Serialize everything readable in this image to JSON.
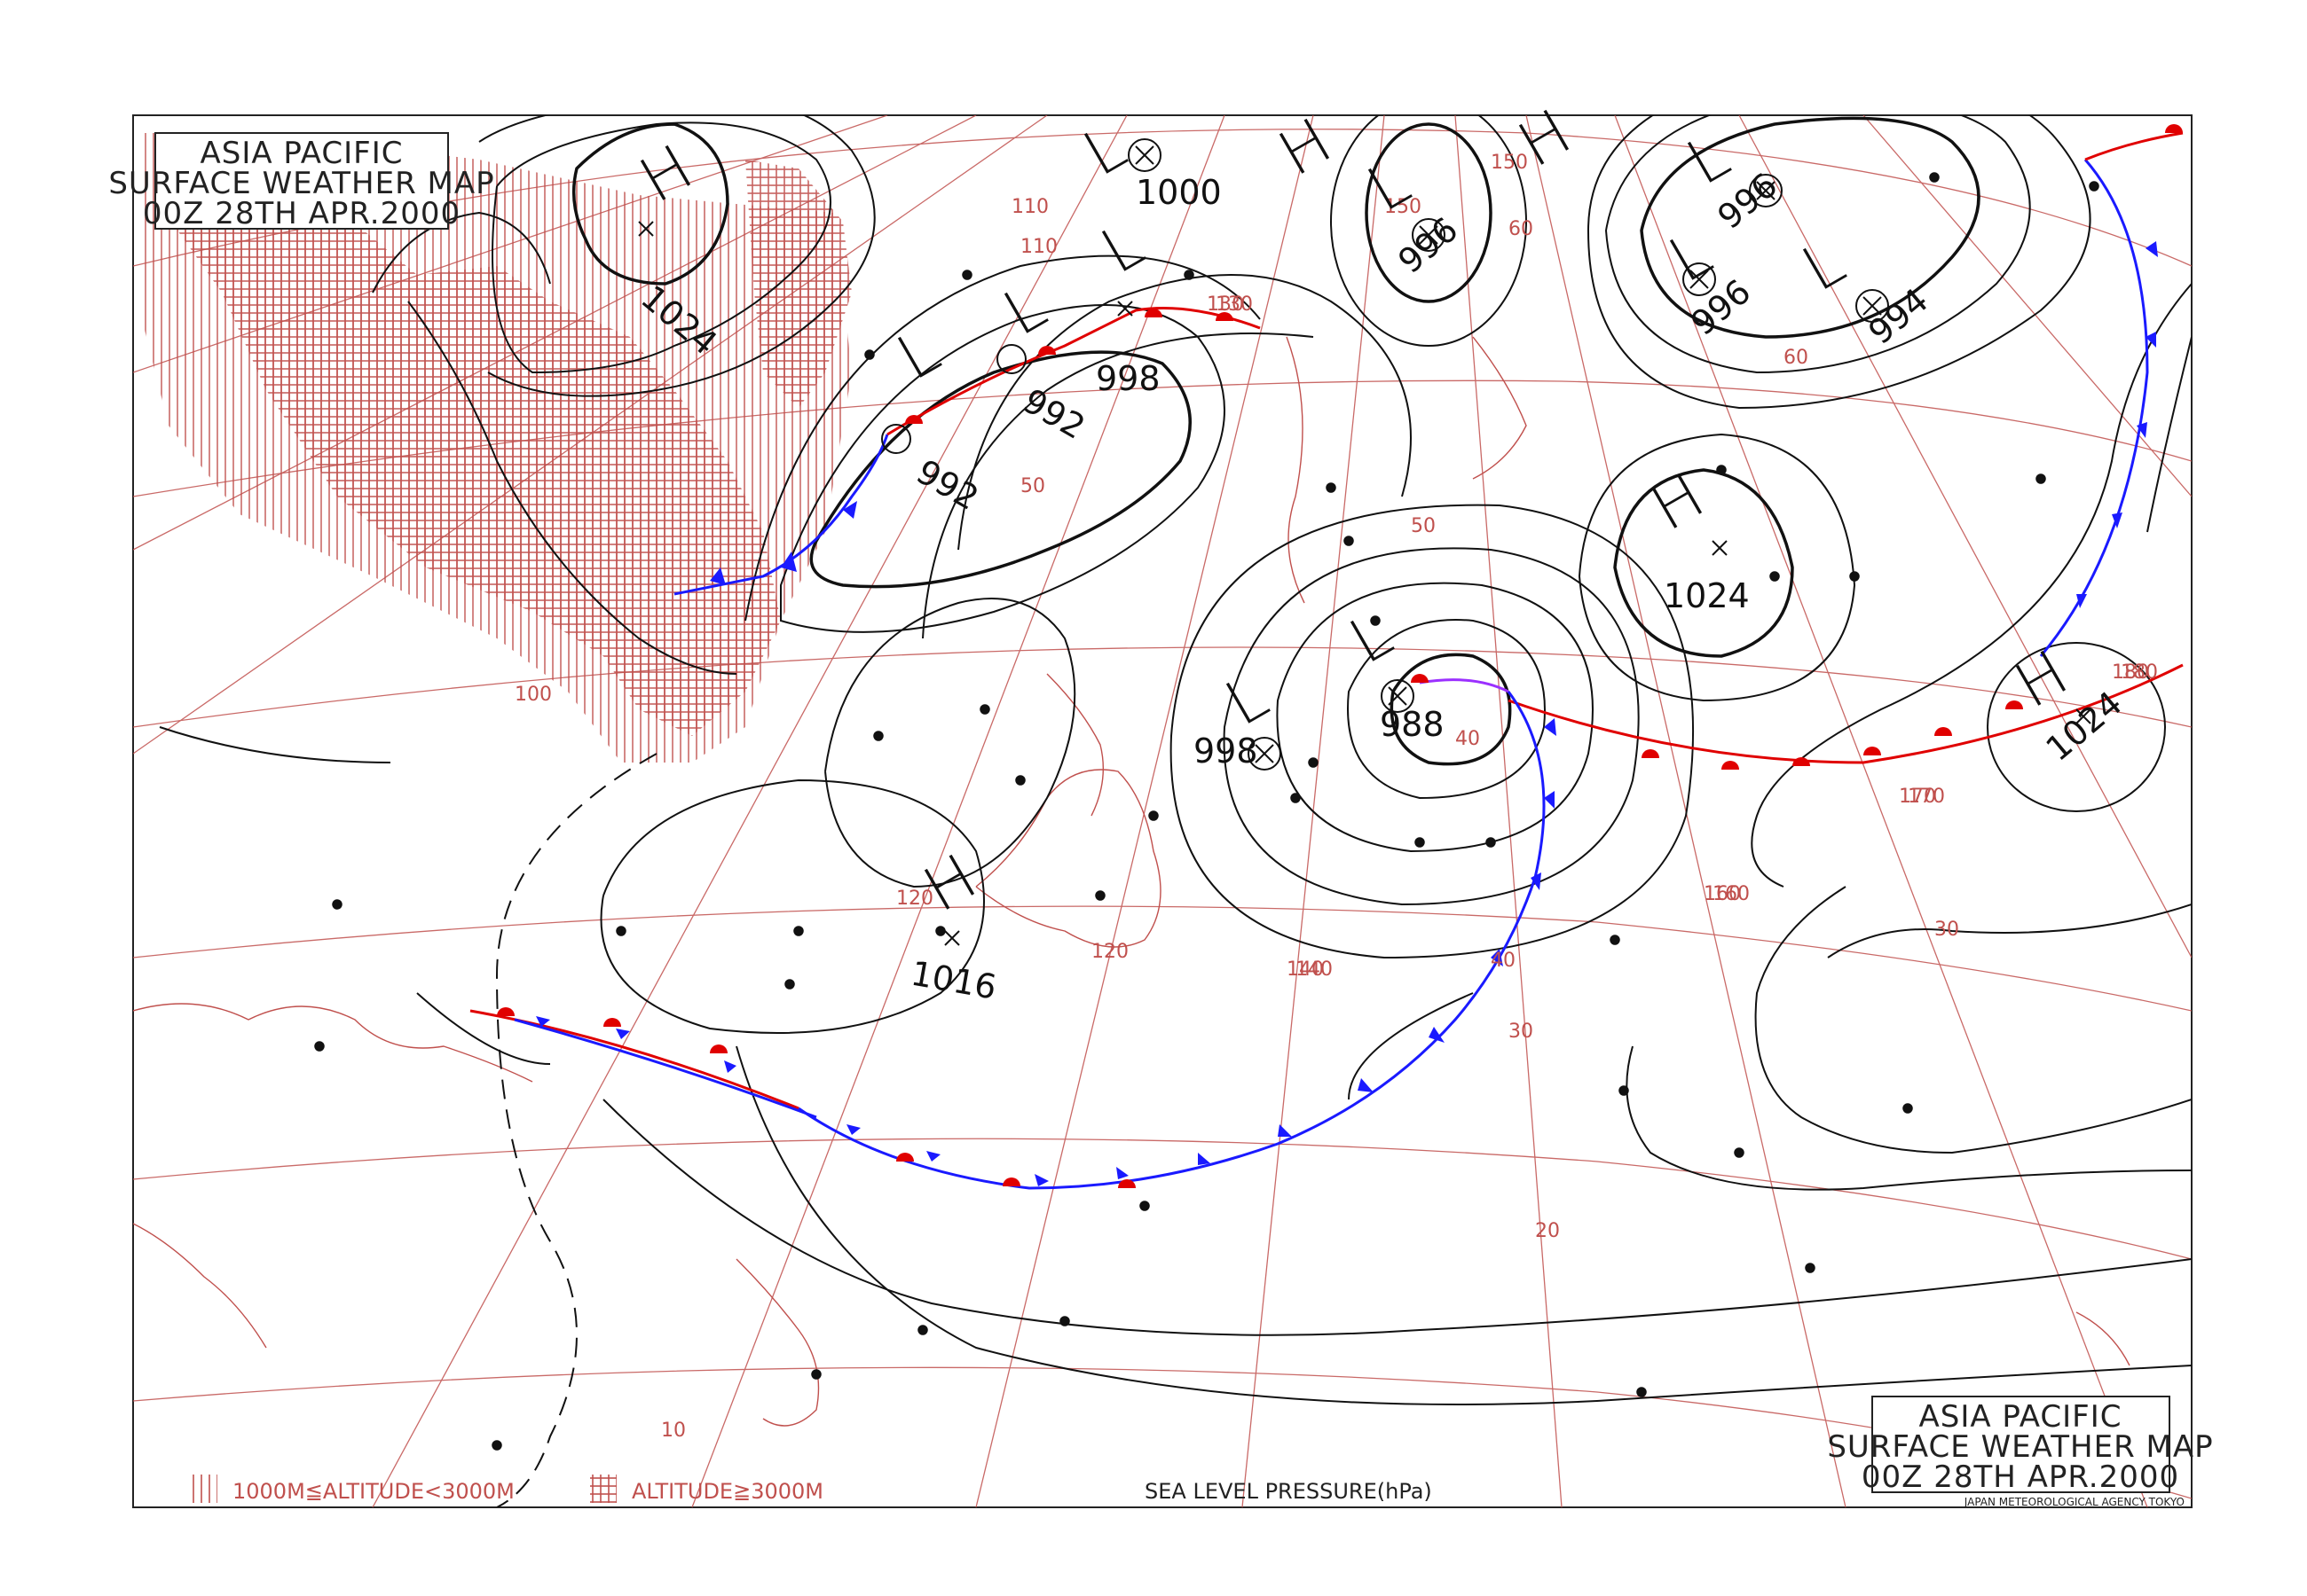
{
  "title_box_top": {
    "line1": "ASIA PACIFIC",
    "line2": "SURFACE WEATHER MAP",
    "line3": "00Z 28TH APR.2000"
  },
  "title_box_bottom": {
    "line1": "ASIA PACIFIC",
    "line2": "SURFACE WEATHER MAP",
    "line3": "00Z 28TH APR.2000",
    "agency": "JAPAN METEOROLOGICAL AGENCY TOKYO"
  },
  "legend": {
    "altitude_low": "1000M≦ALTITUDE<3000M",
    "altitude_high": "ALTITUDE≧3000M",
    "pressure_label": "SEA LEVEL PRESSURE(hPa)"
  },
  "colors": {
    "grid": "#c0504d",
    "isobar": "#111111",
    "warm_front": "#e00000",
    "cold_front": "#1a1aff",
    "occluded_front": "#9b30ff"
  },
  "pressure_systems": [
    {
      "type": "H",
      "value": "1024"
    },
    {
      "type": "L",
      "value": "992"
    },
    {
      "type": "L",
      "value": "992"
    },
    {
      "type": "L",
      "value": "998"
    },
    {
      "type": "L",
      "value": "1000"
    },
    {
      "type": "L",
      "value": "996"
    },
    {
      "type": "L",
      "value": "996"
    },
    {
      "type": "L",
      "value": "996"
    },
    {
      "type": "L",
      "value": "994"
    },
    {
      "type": "H",
      "value": "1024"
    },
    {
      "type": "L",
      "value": "988"
    },
    {
      "type": "L",
      "value": "998"
    },
    {
      "type": "H",
      "value": "1016"
    },
    {
      "type": "H",
      "value": "1024"
    },
    {
      "type": "H",
      "value": ""
    },
    {
      "type": "H",
      "value": ""
    }
  ],
  "lat_labels": [
    "60",
    "50",
    "40",
    "30",
    "20",
    "10",
    "60",
    "50",
    "40",
    "30"
  ],
  "lon_labels": [
    "100",
    "110",
    "120",
    "130",
    "140",
    "150",
    "160",
    "170",
    "180",
    "110",
    "120",
    "130",
    "140",
    "150",
    "160",
    "170",
    "180"
  ]
}
